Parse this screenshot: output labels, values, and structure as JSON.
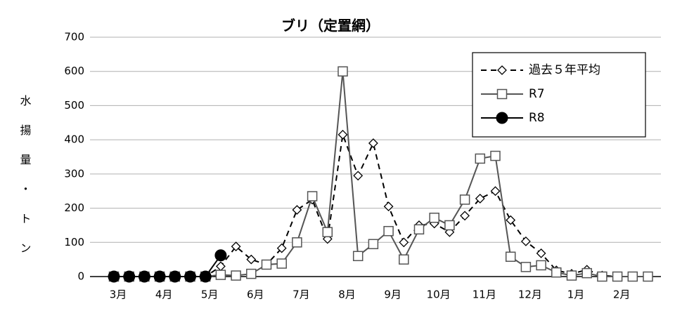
{
  "chart_data": {
    "type": "line",
    "title": "ブリ（定置網）",
    "y_label": "水揚量・トン",
    "categories": [
      "3月",
      null,
      null,
      "4月",
      null,
      null,
      "5月",
      null,
      null,
      "6月",
      null,
      null,
      "7月",
      null,
      null,
      "8月",
      null,
      null,
      "9月",
      null,
      null,
      "10月",
      null,
      null,
      "11月",
      null,
      null,
      "12月",
      null,
      null,
      "1月",
      null,
      null,
      "2月",
      null,
      null
    ],
    "series": [
      {
        "name": "過去５年平均",
        "color": "#000000",
        "dash": true,
        "marker": "diamond",
        "values": [
          0,
          0,
          0,
          0,
          0,
          0,
          0,
          30,
          88,
          50,
          35,
          83,
          195,
          225,
          110,
          415,
          295,
          390,
          205,
          100,
          150,
          155,
          130,
          178,
          228,
          250,
          165,
          103,
          68,
          18,
          8,
          20,
          3,
          0,
          0,
          0
        ]
      },
      {
        "name": "R7",
        "color": "#555555",
        "dash": false,
        "marker": "square",
        "values": [
          0,
          0,
          0,
          0,
          0,
          0,
          0,
          5,
          3,
          8,
          35,
          38,
          100,
          235,
          130,
          600,
          60,
          95,
          133,
          50,
          138,
          172,
          150,
          225,
          345,
          353,
          58,
          28,
          33,
          12,
          3,
          10,
          0,
          0,
          0,
          0
        ]
      },
      {
        "name": "R8",
        "color": "#000000",
        "dash": false,
        "marker": "circle",
        "values": [
          0,
          0,
          0,
          0,
          0,
          0,
          0,
          62,
          null,
          null,
          null,
          null,
          null,
          null,
          null,
          null,
          null,
          null,
          null,
          null,
          null,
          null,
          null,
          null,
          null,
          null,
          null,
          null,
          null,
          null,
          null,
          null,
          null,
          null,
          null,
          null
        ]
      }
    ],
    "ylim": [
      0,
      700
    ],
    "yticks": [
      0,
      100,
      200,
      300,
      400,
      500,
      600,
      700
    ],
    "grid": true,
    "legend": "top-right"
  }
}
